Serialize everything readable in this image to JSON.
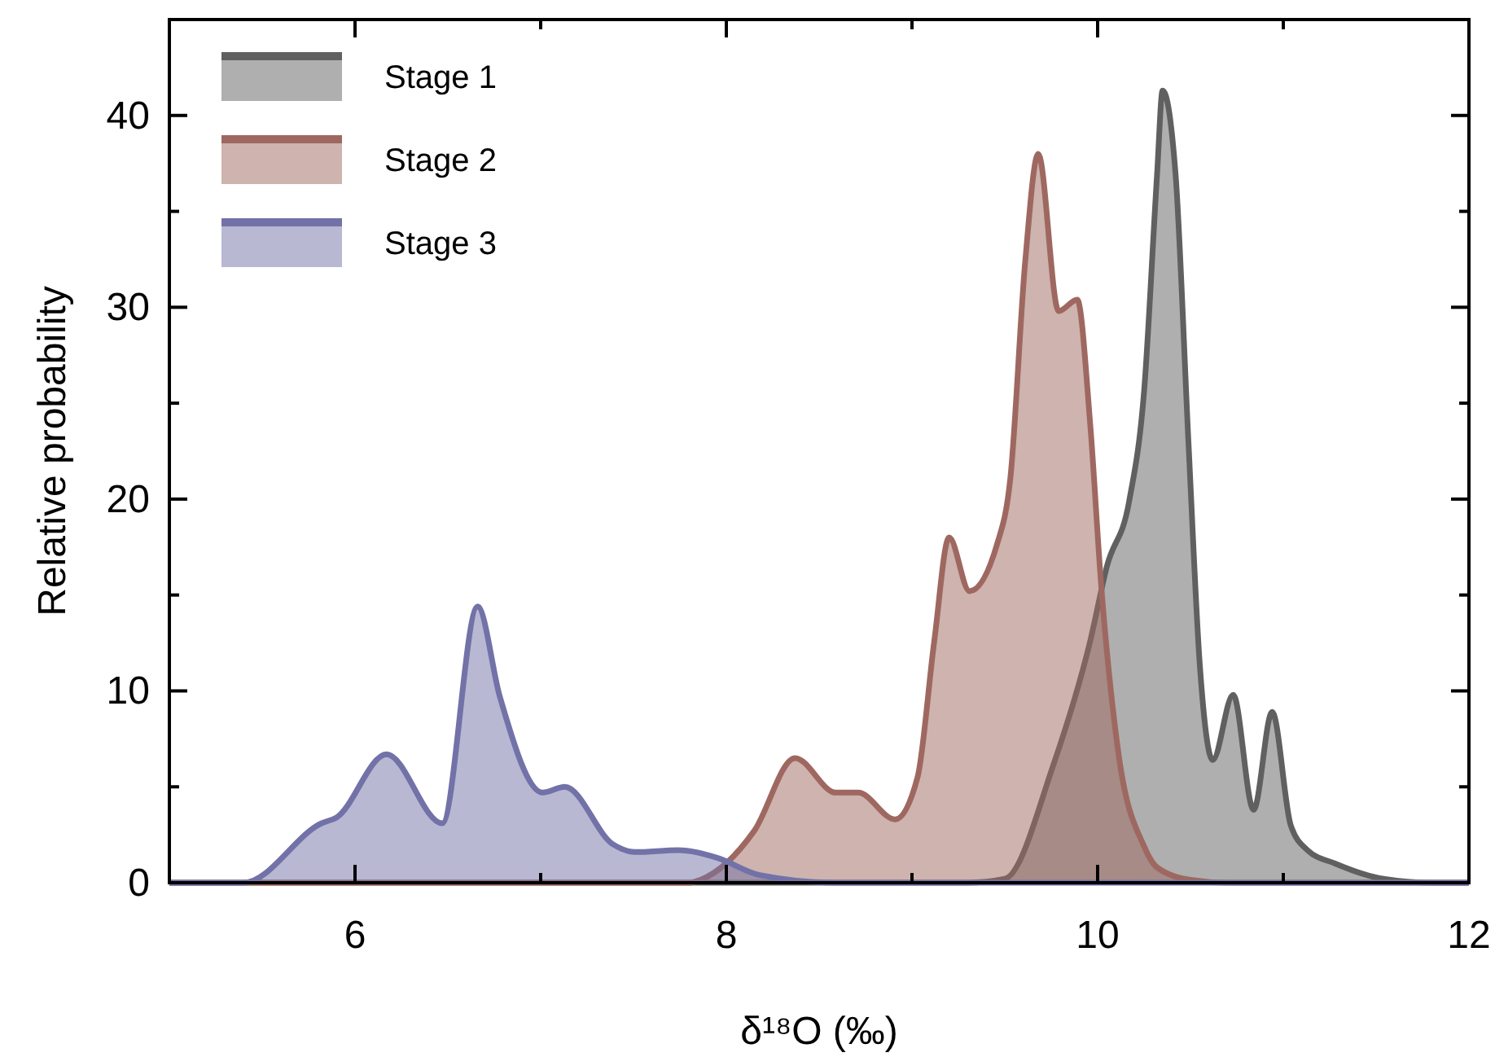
{
  "chart_data": {
    "type": "area",
    "xlabel": "δ¹⁸O (‰)",
    "ylabel": "Relative probability",
    "xlim": [
      5,
      12
    ],
    "ylim": [
      0,
      45
    ],
    "xticks": [
      6,
      {
        "value": 7,
        "label": null
      },
      8,
      {
        "value": 9,
        "label": null
      },
      10,
      {
        "value": 11,
        "label": null
      },
      12
    ],
    "yticks": [
      0,
      {
        "value": 5,
        "label": null
      },
      10,
      {
        "value": 15,
        "label": null
      },
      20,
      {
        "value": 25,
        "label": null
      },
      30,
      {
        "value": 35,
        "label": null
      },
      40
    ],
    "grid": false,
    "legend": "top left",
    "line_style": "solid",
    "series": [
      {
        "name": "Stage 1",
        "color": "#606060",
        "x": [
          5,
          9.3,
          9.5,
          9.76,
          9.96,
          10.05,
          10.17,
          10.25,
          10.32,
          10.35,
          10.42,
          10.49,
          10.55,
          10.62,
          10.73,
          10.84,
          10.94,
          11.04,
          11.13,
          11.28,
          11.54,
          11.8,
          12
        ],
        "values": [
          0,
          0,
          0.2,
          6.1,
          12.6,
          16.5,
          19.9,
          25.6,
          36.9,
          41.3,
          36.9,
          22.8,
          11.4,
          6.4,
          9.8,
          3.8,
          8.9,
          3,
          1.7,
          1,
          0.2,
          0,
          0
        ]
      },
      {
        "name": "Stage 2",
        "color": "#9e6860",
        "x": [
          5,
          7.8,
          7.86,
          8.15,
          8.37,
          8.59,
          8.71,
          8.91,
          9.03,
          9.12,
          9.2,
          9.31,
          9.46,
          9.53,
          9.61,
          9.68,
          9.79,
          9.89,
          9.96,
          10.02,
          10.11,
          10.25,
          10.32,
          10.5,
          10.7,
          12
        ],
        "values": [
          0,
          0,
          0.15,
          2.7,
          6.5,
          4.7,
          4.7,
          3.3,
          5.5,
          12.6,
          18,
          15.2,
          17.7,
          21.1,
          32.4,
          38,
          29.8,
          30.4,
          23.9,
          15.4,
          6.9,
          1.9,
          0.8,
          0.15,
          0,
          0
        ]
      },
      {
        "name": "Stage 3",
        "color": "#7272a8",
        "x": [
          5,
          5.4,
          5.82,
          5.9,
          6.17,
          6.47,
          6.66,
          6.78,
          7.01,
          7.13,
          7.39,
          7.51,
          7.74,
          7.95,
          8.18,
          8.6,
          12
        ],
        "values": [
          0,
          0,
          3.1,
          3.4,
          6.7,
          3.1,
          14.4,
          9.7,
          4.7,
          5,
          2,
          1.6,
          1.7,
          1.3,
          0.4,
          0,
          0
        ]
      }
    ]
  }
}
